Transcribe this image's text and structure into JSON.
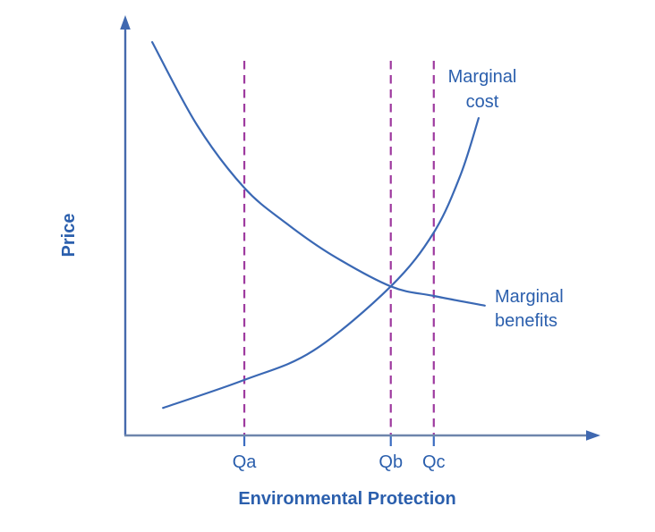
{
  "colors": {
    "curve": "#3a68b4",
    "y_axis": "#4569ad",
    "x_axis": "#6e86ac",
    "arrow": "#3f68b0",
    "marker_line": "#9e3a9f",
    "tick": "#3b6cc0",
    "text": "#2b5fad"
  },
  "chart_data": {
    "type": "line",
    "title": "",
    "xlabel": "Environmental Protection",
    "ylabel": "Price",
    "grid": false,
    "legend": "inline-labels",
    "x_axis": {
      "min": 0,
      "max": 1,
      "tick_labels": []
    },
    "y_axis": {
      "min": 0,
      "max": 1,
      "tick_labels": []
    },
    "x_markers": [
      {
        "label": "Qa",
        "x": 0.252,
        "line_style": "dashed"
      },
      {
        "label": "Qb",
        "x": 0.562,
        "line_style": "dashed"
      },
      {
        "label": "Qc",
        "x": 0.653,
        "line_style": "dashed"
      }
    ],
    "series": [
      {
        "name": "Marginal cost",
        "shape": "increasing convex",
        "points": [
          [
            0.08,
            0.066
          ],
          [
            0.252,
            0.133
          ],
          [
            0.398,
            0.203
          ],
          [
            0.562,
            0.357
          ],
          [
            0.653,
            0.486
          ],
          [
            0.71,
            0.625
          ],
          [
            0.748,
            0.76
          ]
        ]
      },
      {
        "name": "Marginal benefits",
        "shape": "decreasing convex",
        "points": [
          [
            0.057,
            0.942
          ],
          [
            0.152,
            0.743
          ],
          [
            0.252,
            0.593
          ],
          [
            0.341,
            0.508
          ],
          [
            0.436,
            0.433
          ],
          [
            0.562,
            0.357
          ],
          [
            0.653,
            0.334
          ],
          [
            0.761,
            0.311
          ]
        ]
      }
    ],
    "intersection": {
      "at_marker": "Qb",
      "x": 0.562,
      "y": 0.357
    }
  }
}
